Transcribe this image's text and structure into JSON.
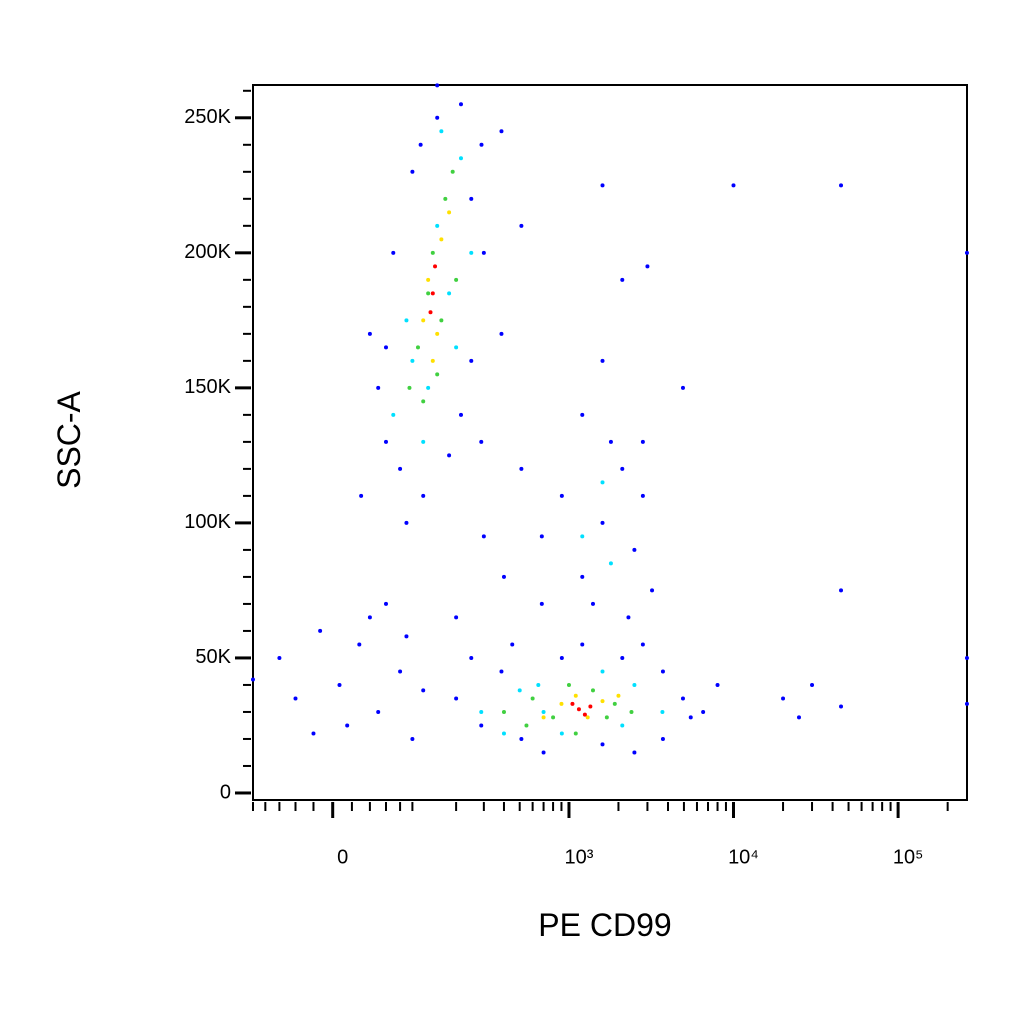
{
  "chart_data": {
    "type": "scatter",
    "xlabel": "PE CD99",
    "ylabel": "SSC-A",
    "xscale": "asinh",
    "xlim": [
      -100,
      262144
    ],
    "ylim": [
      -2600,
      262144
    ],
    "xticks": [
      {
        "value": 0,
        "label": "0"
      },
      {
        "value": 1000,
        "label": "10³"
      },
      {
        "value": 10000,
        "label": "10⁴"
      },
      {
        "value": 100000,
        "label": "10⁵"
      }
    ],
    "xminorticks": [
      -100,
      -80,
      -60,
      -40,
      -20,
      20,
      40,
      60,
      80,
      100,
      200,
      300,
      400,
      500,
      600,
      700,
      800,
      900,
      2000,
      3000,
      4000,
      5000,
      6000,
      7000,
      8000,
      9000,
      20000,
      30000,
      40000,
      50000,
      60000,
      70000,
      80000,
      90000,
      200000
    ],
    "yticks": [
      {
        "value": 0,
        "label": "0"
      },
      {
        "value": 50000,
        "label": "50K"
      },
      {
        "value": 100000,
        "label": "100K"
      },
      {
        "value": 150000,
        "label": "150K"
      },
      {
        "value": 200000,
        "label": "200K"
      },
      {
        "value": 250000,
        "label": "250K"
      }
    ],
    "yminorticks": [
      10000,
      20000,
      30000,
      40000,
      60000,
      70000,
      80000,
      90000,
      110000,
      120000,
      130000,
      140000,
      160000,
      170000,
      180000,
      190000,
      210000,
      220000,
      230000,
      240000,
      260000
    ],
    "series": [
      {
        "color": "#0000ff",
        "x": [
          50,
          60,
          80,
          40,
          70,
          100,
          150,
          215,
          290,
          386,
          300,
          250,
          215,
          180,
          120,
          90,
          386,
          512,
          289,
          60,
          150,
          115,
          250,
          30,
          512,
          683,
          905,
          1205,
          1600,
          2110,
          3000,
          1600,
          4933,
          683,
          400,
          300,
          200,
          1205,
          1600,
          2110,
          2815,
          1400,
          2500,
          3200,
          1800,
          2300,
          2815,
          200,
          289,
          386,
          512,
          700,
          905,
          1205,
          1600,
          2110,
          2815,
          3727,
          4933,
          6540,
          3727,
          8000,
          250,
          450,
          2500,
          5500,
          -13,
          7,
          28,
          50,
          80,
          -40,
          15,
          60,
          100,
          40,
          -60,
          120,
          -20,
          90,
          20000,
          30000,
          45000,
          45000,
          45000,
          10000,
          25000,
          262000,
          262000,
          262000,
          -100
        ],
        "values": [
          150000,
          130000,
          120000,
          170000,
          200000,
          230000,
          250000,
          255000,
          240000,
          245000,
          200000,
          160000,
          140000,
          125000,
          110000,
          100000,
          170000,
          210000,
          130000,
          165000,
          262000,
          240000,
          220000,
          110000,
          120000,
          95000,
          110000,
          140000,
          160000,
          190000,
          195000,
          225000,
          150000,
          70000,
          80000,
          95000,
          65000,
          80000,
          100000,
          120000,
          110000,
          70000,
          90000,
          75000,
          130000,
          65000,
          130000,
          35000,
          25000,
          45000,
          20000,
          15000,
          50000,
          55000,
          18000,
          50000,
          55000,
          45000,
          35000,
          30000,
          20000,
          40000,
          50000,
          55000,
          15000,
          28000,
          60000,
          40000,
          55000,
          30000,
          45000,
          35000,
          25000,
          70000,
          20000,
          65000,
          50000,
          38000,
          22000,
          58000,
          35000,
          40000,
          225000,
          75000,
          32000,
          225000,
          28000,
          200000,
          50000,
          33000,
          42000
        ]
      },
      {
        "color": "#00e0ff",
        "x": [
          70,
          100,
          150,
          215,
          180,
          120,
          250,
          90,
          130,
          200,
          160,
          1205,
          1600,
          1800,
          289,
          400,
          650,
          905,
          1600,
          2500,
          3700,
          2110,
          700,
          500
        ],
        "values": [
          140000,
          160000,
          210000,
          235000,
          185000,
          130000,
          200000,
          175000,
          150000,
          165000,
          245000,
          95000,
          115000,
          85000,
          30000,
          22000,
          40000,
          22000,
          45000,
          40000,
          30000,
          25000,
          30000,
          38000
        ]
      },
      {
        "color": "#40d040",
        "x": [
          110,
          140,
          170,
          200,
          95,
          160,
          130,
          190,
          120,
          150,
          400,
          600,
          800,
          1000,
          1400,
          1900,
          2400,
          550,
          1100,
          1700
        ],
        "values": [
          165000,
          200000,
          220000,
          190000,
          150000,
          175000,
          185000,
          230000,
          145000,
          155000,
          30000,
          35000,
          28000,
          40000,
          38000,
          33000,
          30000,
          25000,
          22000,
          28000
        ]
      },
      {
        "color": "#ffe000",
        "x": [
          130,
          150,
          160,
          120,
          180,
          140,
          900,
          1100,
          1300,
          1600,
          700,
          2000
        ],
        "values": [
          190000,
          170000,
          205000,
          175000,
          215000,
          160000,
          33000,
          36000,
          28000,
          34000,
          28000,
          36000
        ]
      },
      {
        "color": "#ff0000",
        "x": [
          140,
          145,
          135,
          1150,
          1250,
          1050,
          1350
        ],
        "values": [
          185000,
          195000,
          178000,
          31000,
          29000,
          33000,
          32000
        ]
      }
    ]
  }
}
